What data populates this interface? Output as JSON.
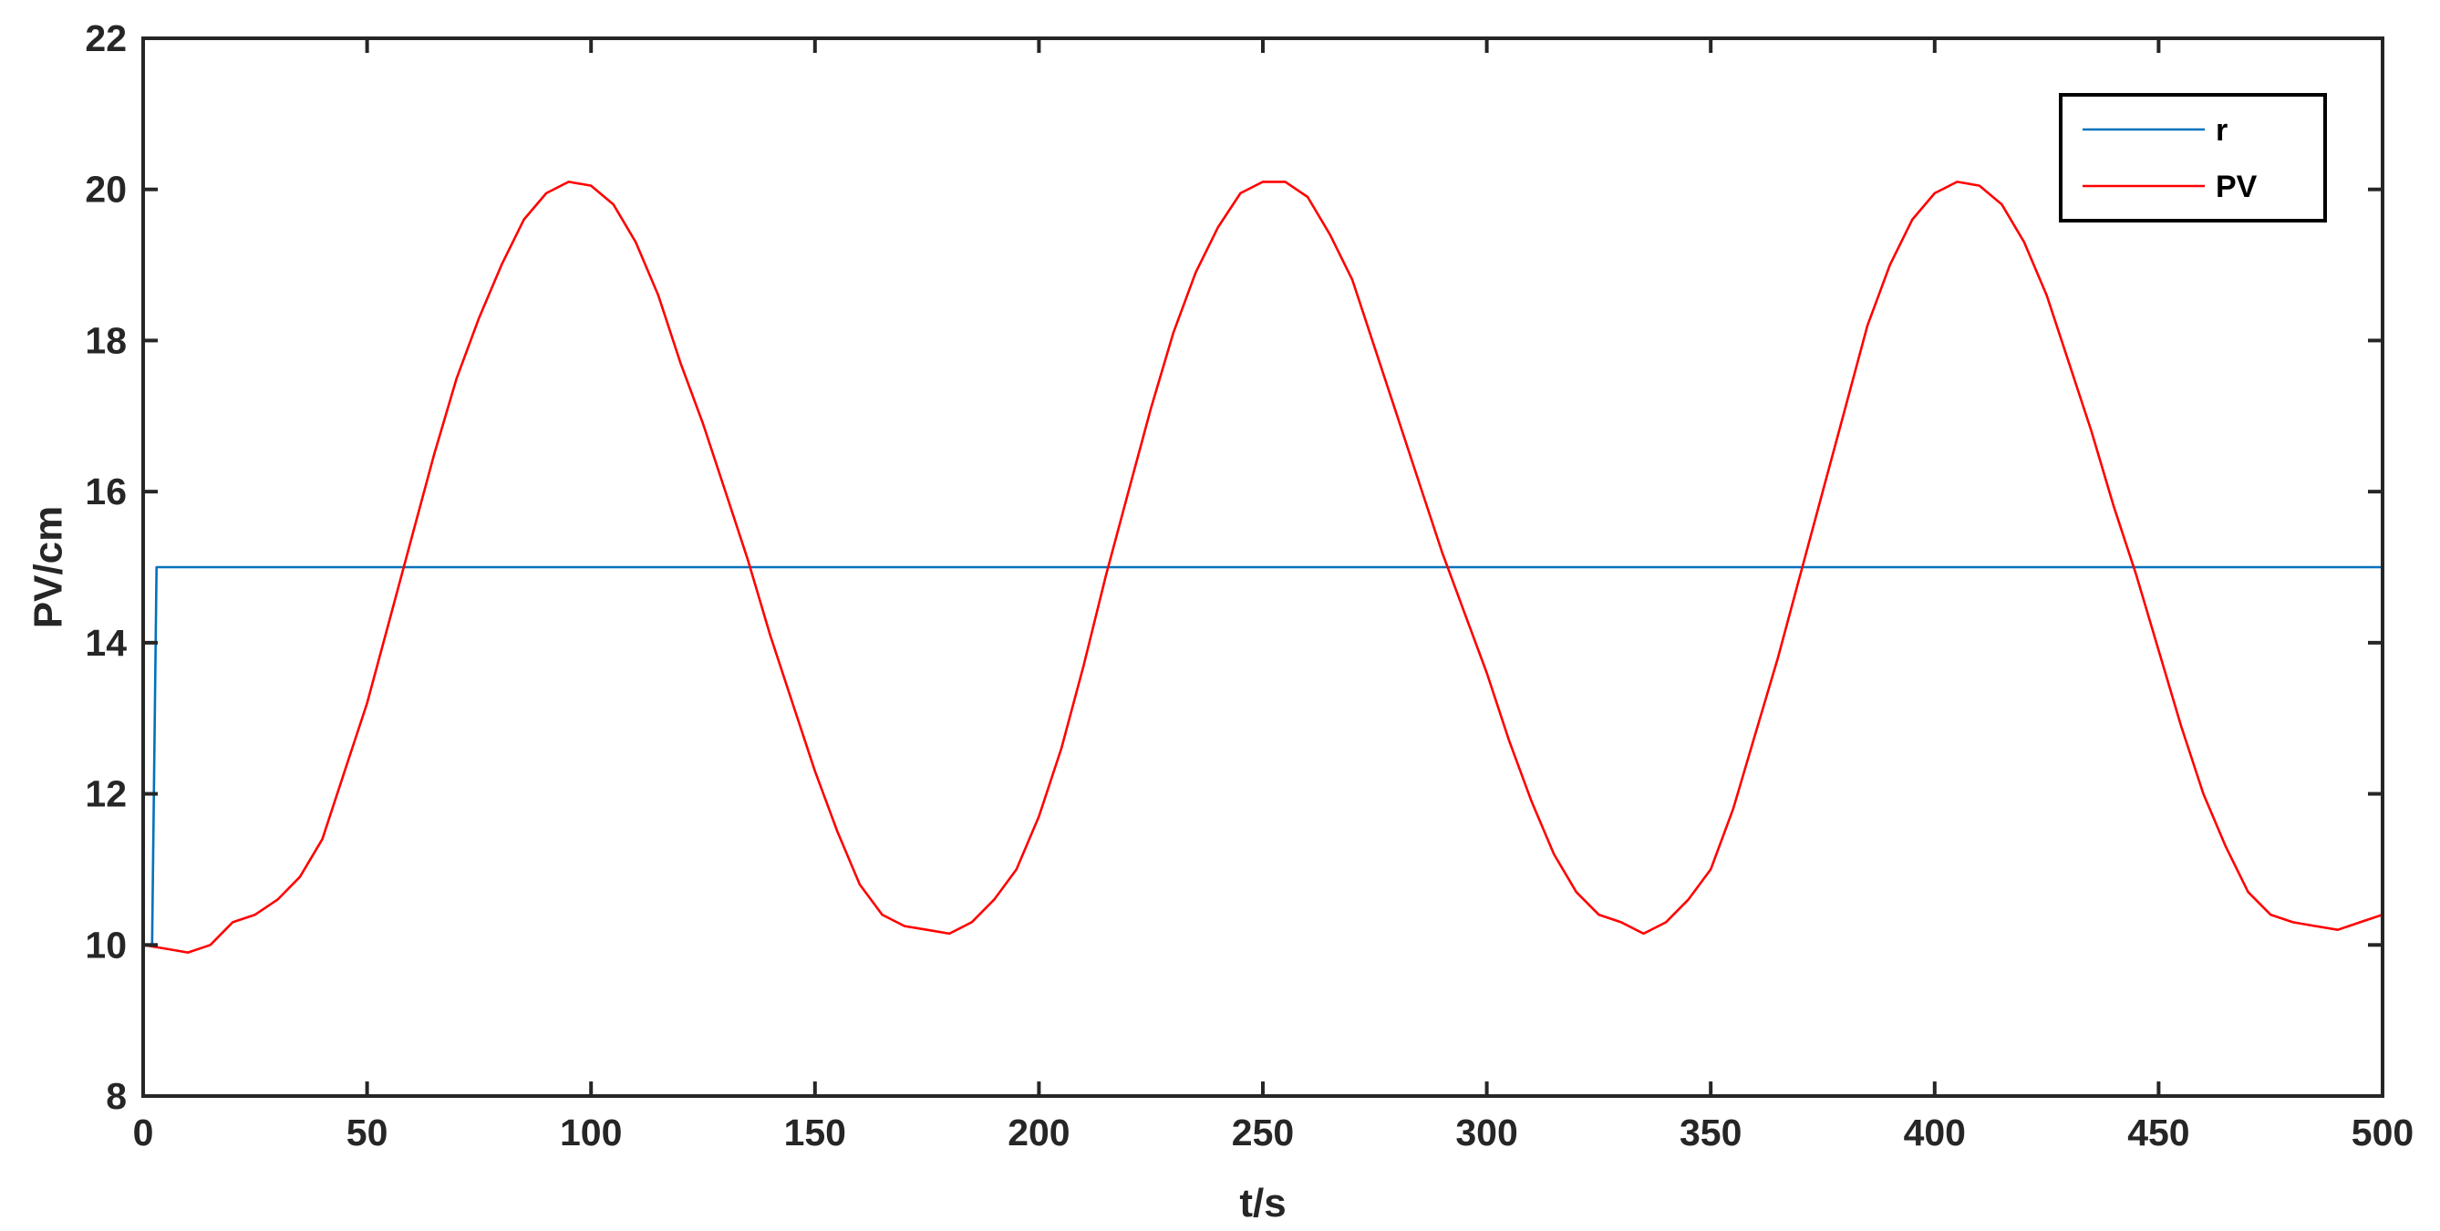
{
  "chart_data": {
    "type": "line",
    "title": "",
    "xlabel": "t/s",
    "ylabel": "PV/cm",
    "xlim": [
      0,
      500
    ],
    "ylim": [
      8,
      22
    ],
    "xticks": [
      0,
      50,
      100,
      150,
      200,
      250,
      300,
      350,
      400,
      450,
      500
    ],
    "yticks": [
      8,
      10,
      12,
      14,
      16,
      18,
      20,
      22
    ],
    "grid": false,
    "legend_position": "top-right",
    "series": [
      {
        "name": "r",
        "color": "#0072BD",
        "x": [
          0,
          2,
          3,
          500
        ],
        "y": [
          10,
          10,
          15,
          15
        ]
      },
      {
        "name": "PV",
        "color": "#FF0000",
        "x": [
          0,
          5,
          10,
          15,
          20,
          25,
          30,
          35,
          40,
          45,
          50,
          55,
          60,
          65,
          70,
          75,
          80,
          85,
          90,
          95,
          100,
          105,
          110,
          115,
          120,
          125,
          130,
          135,
          140,
          145,
          150,
          155,
          160,
          165,
          170,
          175,
          180,
          185,
          190,
          195,
          200,
          205,
          210,
          215,
          220,
          225,
          230,
          235,
          240,
          245,
          250,
          255,
          260,
          265,
          270,
          275,
          280,
          285,
          290,
          295,
          300,
          305,
          310,
          315,
          320,
          325,
          330,
          335,
          340,
          345,
          350,
          355,
          360,
          365,
          370,
          375,
          380,
          385,
          390,
          395,
          400,
          405,
          410,
          415,
          420,
          425,
          430,
          435,
          440,
          445,
          450,
          455,
          460,
          465,
          470,
          475,
          480,
          485,
          490,
          495,
          500
        ],
        "y": [
          10.0,
          9.95,
          9.9,
          10.0,
          10.3,
          10.4,
          10.6,
          10.9,
          11.4,
          12.3,
          13.2,
          14.3,
          15.4,
          16.5,
          17.5,
          18.3,
          19.0,
          19.6,
          19.95,
          20.1,
          20.05,
          19.8,
          19.3,
          18.6,
          17.7,
          16.9,
          16.0,
          15.1,
          14.1,
          13.2,
          12.3,
          11.5,
          10.8,
          10.4,
          10.25,
          10.2,
          10.15,
          10.3,
          10.6,
          11.0,
          11.7,
          12.6,
          13.7,
          14.9,
          16.0,
          17.1,
          18.1,
          18.9,
          19.5,
          19.95,
          20.1,
          20.1,
          19.9,
          19.4,
          18.8,
          17.9,
          17.0,
          16.1,
          15.2,
          14.4,
          13.6,
          12.7,
          11.9,
          11.2,
          10.7,
          10.4,
          10.3,
          10.15,
          10.3,
          10.6,
          11.0,
          11.8,
          12.8,
          13.8,
          14.9,
          16.0,
          17.1,
          18.2,
          19.0,
          19.6,
          19.95,
          20.1,
          20.05,
          19.8,
          19.3,
          18.6,
          17.7,
          16.8,
          15.8,
          14.9,
          13.9,
          12.9,
          12.0,
          11.3,
          10.7,
          10.4,
          10.3,
          10.25,
          10.2,
          10.3,
          10.4
        ]
      }
    ]
  }
}
